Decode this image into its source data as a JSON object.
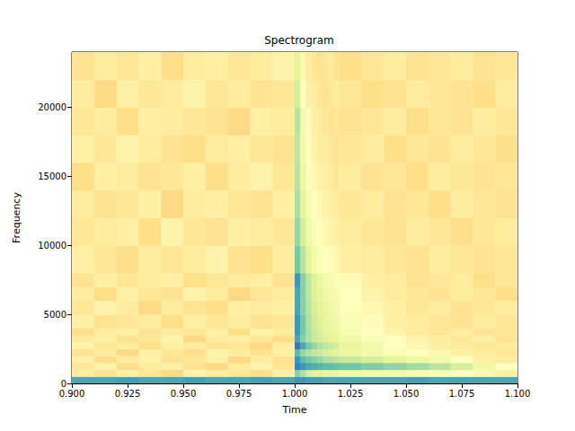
{
  "chart_data": {
    "type": "spectrogram",
    "title": "Spectrogram",
    "x_label": "Time",
    "y_label": "Frequency",
    "xlim": [
      0.9,
      1.1
    ],
    "ylim": [
      0,
      24000
    ],
    "xticks": [
      {
        "value": 0.9,
        "label": "0.900"
      },
      {
        "value": 0.925,
        "label": "0.925"
      },
      {
        "value": 0.95,
        "label": "0.950"
      },
      {
        "value": 0.975,
        "label": "0.975"
      },
      {
        "value": 1.0,
        "label": "1.000"
      },
      {
        "value": 1.025,
        "label": "1.025"
      },
      {
        "value": 1.05,
        "label": "1.050"
      },
      {
        "value": 1.075,
        "label": "1.075"
      },
      {
        "value": 1.1,
        "label": "1.100"
      }
    ],
    "yticks": [
      0,
      5000,
      10000,
      15000,
      20000
    ],
    "zlim": [
      -110,
      -30
    ],
    "x_edges": [
      0.9,
      0.91,
      0.92,
      0.93,
      0.94,
      0.95,
      0.96,
      0.97,
      0.98,
      0.99,
      1.0,
      1.0025,
      1.005,
      1.0075,
      1.01,
      1.0125,
      1.015,
      1.0175,
      1.02,
      1.03,
      1.04,
      1.05,
      1.06,
      1.07,
      1.08,
      1.09,
      1.1
    ],
    "y_edges": [
      0,
      500,
      1000,
      1500,
      2000,
      2500,
      3000,
      3500,
      4000,
      5000,
      6000,
      7000,
      8000,
      10000,
      12000,
      14000,
      16000,
      18000,
      20000,
      22000,
      24000
    ],
    "z": [
      [
        -42,
        -42,
        -41,
        -42,
        -42,
        -41,
        -42,
        -42,
        -41,
        -42,
        -40,
        -40,
        -41,
        -41,
        -41,
        -42,
        -42,
        -42,
        -42,
        -42,
        -42,
        -41,
        -42,
        -42,
        -42,
        -42
      ],
      [
        -75,
        -77,
        -74,
        -76,
        -79,
        -73,
        -75,
        -76,
        -78,
        -74,
        -50,
        -55,
        -60,
        -62,
        -62,
        -63,
        -63,
        -64,
        -65,
        -66,
        -66,
        -67,
        -68,
        -70,
        -72,
        -74
      ],
      [
        -76,
        -73,
        -78,
        -75,
        -74,
        -77,
        -79,
        -75,
        -73,
        -76,
        -38,
        -40,
        -42,
        -43,
        -44,
        -45,
        -45,
        -46,
        -47,
        -49,
        -51,
        -53,
        -56,
        -60,
        -65,
        -70
      ],
      [
        -74,
        -78,
        -75,
        -73,
        -77,
        -76,
        -74,
        -79,
        -75,
        -77,
        -40,
        -45,
        -48,
        -50,
        -52,
        -54,
        -55,
        -56,
        -58,
        -60,
        -62,
        -64,
        -66,
        -70,
        -74,
        -75
      ],
      [
        -77,
        -75,
        -79,
        -74,
        -76,
        -78,
        -73,
        -75,
        -77,
        -74,
        -45,
        -52,
        -55,
        -57,
        -58,
        -60,
        -61,
        -62,
        -64,
        -66,
        -68,
        -70,
        -72,
        -74,
        -75,
        -76
      ],
      [
        -73,
        -76,
        -75,
        -78,
        -74,
        -75,
        -77,
        -76,
        -79,
        -75,
        -35,
        -42,
        -48,
        -52,
        -55,
        -57,
        -58,
        -60,
        -63,
        -66,
        -70,
        -72,
        -74,
        -75,
        -76,
        -75
      ],
      [
        -75,
        -74,
        -77,
        -76,
        -73,
        -79,
        -75,
        -74,
        -76,
        -78,
        -42,
        -50,
        -55,
        -58,
        -60,
        -61,
        -62,
        -63,
        -65,
        -68,
        -70,
        -73,
        -75,
        -76,
        -74,
        -77
      ],
      [
        -78,
        -75,
        -74,
        -77,
        -75,
        -76,
        -74,
        -78,
        -73,
        -75,
        -40,
        -48,
        -54,
        -58,
        -60,
        -62,
        -63,
        -64,
        -67,
        -70,
        -73,
        -75,
        -76,
        -75,
        -77,
        -76
      ],
      [
        -74,
        -77,
        -76,
        -75,
        -78,
        -74,
        -76,
        -75,
        -77,
        -76,
        -40,
        -48,
        -55,
        -59,
        -61,
        -63,
        -64,
        -65,
        -68,
        -71,
        -74,
        -75,
        -76,
        -77,
        -75,
        -76
      ],
      [
        -76,
        -73,
        -75,
        -79,
        -75,
        -77,
        -78,
        -74,
        -75,
        -74,
        -42,
        -50,
        -56,
        -60,
        -62,
        -63,
        -65,
        -66,
        -69,
        -72,
        -74,
        -76,
        -75,
        -77,
        -76,
        -75
      ],
      [
        -75,
        -78,
        -74,
        -76,
        -77,
        -73,
        -75,
        -79,
        -76,
        -75,
        -42,
        -50,
        -57,
        -61,
        -63,
        -65,
        -66,
        -67,
        -70,
        -73,
        -75,
        -76,
        -77,
        -75,
        -76,
        -78
      ],
      [
        -77,
        -74,
        -76,
        -75,
        -74,
        -78,
        -76,
        -75,
        -74,
        -77,
        -40,
        -50,
        -57,
        -61,
        -64,
        -66,
        -67,
        -68,
        -71,
        -74,
        -75,
        -77,
        -76,
        -75,
        -78,
        -76
      ],
      [
        -74,
        -76,
        -78,
        -75,
        -76,
        -75,
        -73,
        -77,
        -78,
        -75,
        -48,
        -56,
        -62,
        -66,
        -68,
        -70,
        -71,
        -72,
        -74,
        -75,
        -76,
        -77,
        -75,
        -76,
        -77,
        -76
      ],
      [
        -76,
        -75,
        -74,
        -78,
        -73,
        -76,
        -77,
        -74,
        -75,
        -76,
        -52,
        -60,
        -65,
        -68,
        -70,
        -72,
        -73,
        -74,
        -75,
        -76,
        -77,
        -75,
        -76,
        -78,
        -76,
        -75
      ],
      [
        -75,
        -77,
        -76,
        -74,
        -79,
        -75,
        -74,
        -76,
        -77,
        -74,
        -54,
        -62,
        -67,
        -70,
        -72,
        -73,
        -74,
        -75,
        -76,
        -75,
        -77,
        -76,
        -78,
        -75,
        -76,
        -77
      ],
      [
        -78,
        -74,
        -75,
        -77,
        -76,
        -74,
        -78,
        -75,
        -73,
        -76,
        -56,
        -64,
        -69,
        -72,
        -73,
        -74,
        -75,
        -76,
        -75,
        -77,
        -76,
        -78,
        -75,
        -76,
        -77,
        -76
      ],
      [
        -74,
        -76,
        -73,
        -75,
        -77,
        -78,
        -75,
        -74,
        -76,
        -77,
        -57,
        -66,
        -70,
        -73,
        -75,
        -75,
        -76,
        -77,
        -76,
        -75,
        -78,
        -76,
        -77,
        -75,
        -76,
        -78
      ],
      [
        -76,
        -75,
        -78,
        -74,
        -75,
        -76,
        -77,
        -79,
        -74,
        -75,
        -56,
        -66,
        -71,
        -74,
        -75,
        -76,
        -77,
        -76,
        -77,
        -76,
        -75,
        -78,
        -76,
        -77,
        -75,
        -76
      ],
      [
        -75,
        -79,
        -74,
        -76,
        -75,
        -73,
        -76,
        -75,
        -77,
        -76,
        -60,
        -70,
        -74,
        -75,
        -76,
        -77,
        -76,
        -75,
        -76,
        -78,
        -77,
        -75,
        -76,
        -77,
        -78,
        -75
      ],
      [
        -77,
        -75,
        -76,
        -74,
        -78,
        -75,
        -74,
        -76,
        -75,
        -73,
        -62,
        -72,
        -75,
        -76,
        -77,
        -76,
        -75,
        -77,
        -78,
        -76,
        -75,
        -77,
        -76,
        -75,
        -77,
        -76
      ]
    ]
  }
}
